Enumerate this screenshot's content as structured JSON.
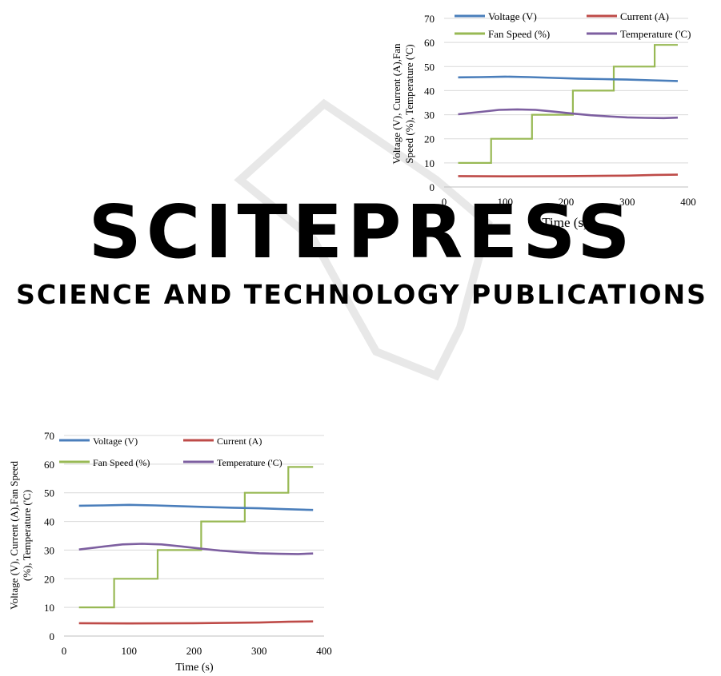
{
  "watermark": {
    "brand": "SCITEPRESS",
    "tagline": "SCIENCE AND TECHNOLOGY PUBLICATIONS",
    "color": "#e6e6e6"
  },
  "colors": {
    "voltage": "#4a7ebb",
    "current": "#be4b48",
    "fan": "#98b954",
    "temperature": "#7d5fa0",
    "grid": "#d9d9d9"
  },
  "chart_data": [
    {
      "type": "line",
      "xlabel": "Time (s)",
      "ylabel_lines": [
        "Voltage (V), Current (A),Fan",
        "Speed (%), Temperature ('C)"
      ],
      "xlim": [
        0,
        400
      ],
      "ylim": [
        0,
        70
      ],
      "xticks": [
        "0",
        "100",
        "200",
        "300",
        "400"
      ],
      "yticks": [
        "0",
        "10",
        "20",
        "30",
        "40",
        "50",
        "60",
        "70"
      ],
      "grid": "horizontal",
      "legend": "top",
      "series": [
        {
          "name": "Voltage (V)",
          "x": [
            23,
            60,
            100,
            140,
            180,
            220,
            260,
            300,
            340,
            383
          ],
          "y": [
            45.5,
            45.6,
            45.8,
            45.6,
            45.3,
            45.0,
            44.8,
            44.6,
            44.3,
            44.0
          ]
        },
        {
          "name": "Current (A)",
          "x": [
            23,
            100,
            200,
            300,
            345,
            383
          ],
          "y": [
            4.5,
            4.4,
            4.5,
            4.7,
            5.0,
            5.1
          ]
        },
        {
          "name": "Fan Speed (%)",
          "x": [
            23,
            77,
            77,
            144,
            144,
            211,
            211,
            278,
            278,
            345,
            345,
            383
          ],
          "y": [
            10,
            10,
            20,
            20,
            30,
            30,
            40,
            40,
            50,
            50,
            59,
            59
          ]
        },
        {
          "name": "Temperature ('C)",
          "x": [
            23,
            60,
            90,
            120,
            150,
            180,
            210,
            240,
            270,
            300,
            330,
            360,
            383
          ],
          "y": [
            30.2,
            31.2,
            32.0,
            32.2,
            32.0,
            31.3,
            30.5,
            29.8,
            29.3,
            28.9,
            28.7,
            28.6,
            28.8
          ]
        }
      ]
    },
    {
      "type": "line",
      "xlabel": "Time (s)",
      "ylabel_lines": [
        "Voltage (V), Current (A),Fan Speed",
        "(%), Temperature ('C)"
      ],
      "xlim": [
        0,
        400
      ],
      "ylim": [
        0,
        70
      ],
      "xticks": [
        "0",
        "100",
        "200",
        "300",
        "400"
      ],
      "yticks": [
        "0",
        "10",
        "20",
        "30",
        "40",
        "50",
        "60",
        "70"
      ],
      "grid": "horizontal",
      "legend": "top",
      "series": [
        {
          "name": "Voltage (V)",
          "x": [
            23,
            60,
            100,
            140,
            180,
            220,
            260,
            300,
            340,
            383
          ],
          "y": [
            45.5,
            45.6,
            45.8,
            45.6,
            45.3,
            45.0,
            44.8,
            44.6,
            44.3,
            44.0
          ]
        },
        {
          "name": "Current (A)",
          "x": [
            23,
            100,
            200,
            300,
            345,
            383
          ],
          "y": [
            4.5,
            4.4,
            4.5,
            4.7,
            5.0,
            5.1
          ]
        },
        {
          "name": "Fan Speed (%)",
          "x": [
            23,
            77,
            77,
            144,
            144,
            211,
            211,
            278,
            278,
            345,
            345,
            383
          ],
          "y": [
            10,
            10,
            20,
            20,
            30,
            30,
            40,
            40,
            50,
            50,
            59,
            59
          ]
        },
        {
          "name": "Temperature ('C)",
          "x": [
            23,
            60,
            90,
            120,
            150,
            180,
            210,
            240,
            270,
            300,
            330,
            360,
            383
          ],
          "y": [
            30.2,
            31.2,
            32.0,
            32.2,
            32.0,
            31.3,
            30.5,
            29.8,
            29.3,
            28.9,
            28.7,
            28.6,
            28.8
          ]
        }
      ]
    }
  ]
}
